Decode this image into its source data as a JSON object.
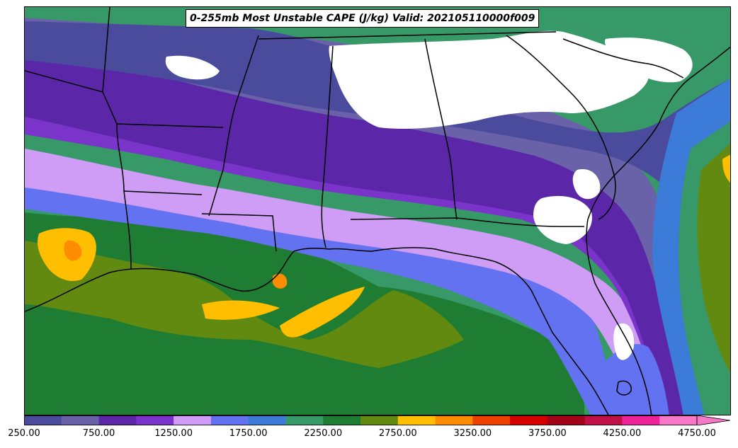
{
  "title": "0-255mb Most Unstable CAPE (J/kg) Valid: 202105110000f009",
  "colorbar": {
    "colors": [
      "#4b4b9e",
      "#6a62a9",
      "#5b27a8",
      "#7a34c9",
      "#cf9df5",
      "#6272f0",
      "#3d7bd8",
      "#379868",
      "#1f7d33",
      "#628a10",
      "#ffbf00",
      "#ff8c00",
      "#ee4100",
      "#d40000",
      "#a3001a",
      "#c01048",
      "#ee2299",
      "#f878c8"
    ],
    "tick_labels": [
      "250.00",
      "750.00",
      "1250.00",
      "1750.00",
      "2250.00",
      "2750.00",
      "3250.00",
      "3750.00",
      "4250.00",
      "4750.00"
    ]
  },
  "map": {
    "boundary_color": "#000000",
    "no_data_color": "#ffffff"
  }
}
